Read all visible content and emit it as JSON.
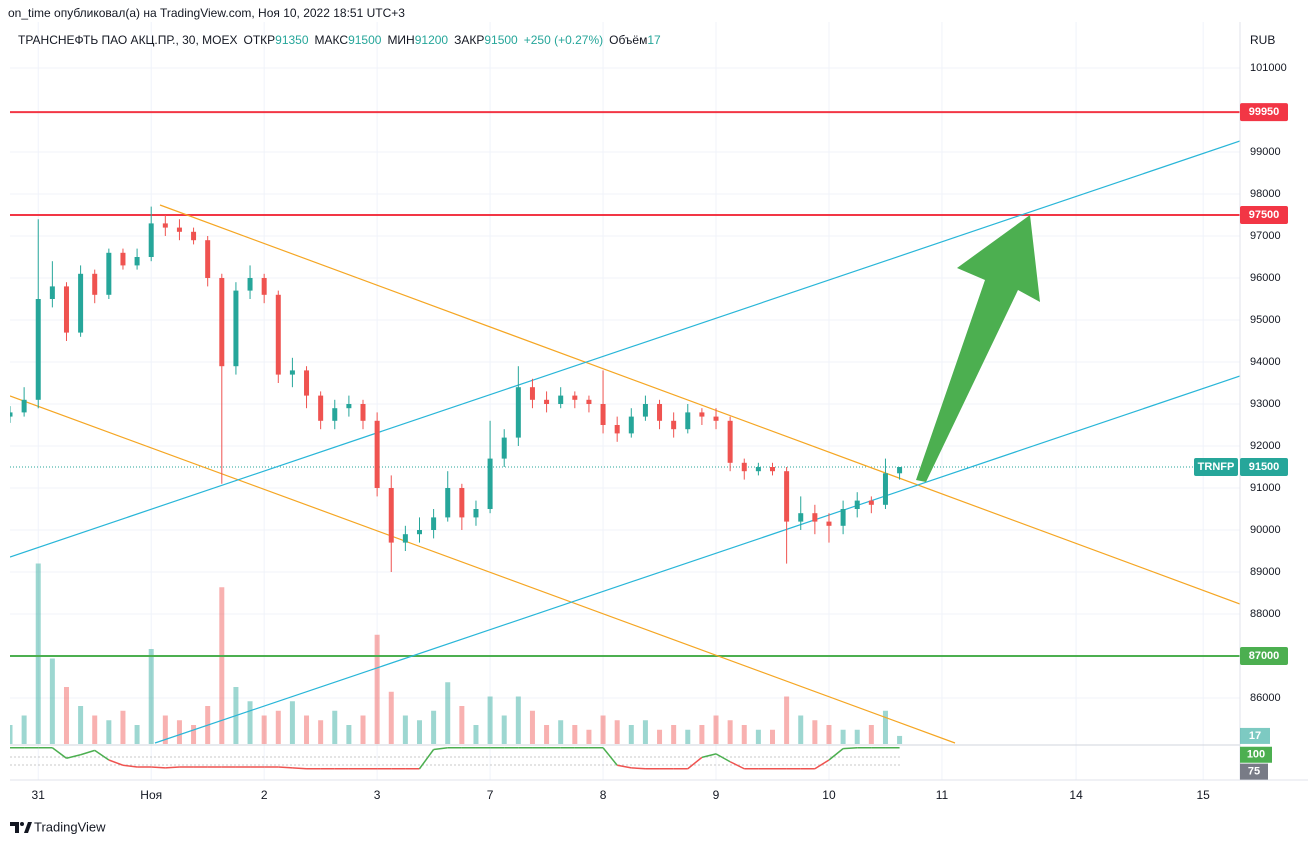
{
  "header": {
    "publisher": "on_time опубликовал(а) на TradingView.com, Ноя 10, 2022 18:51 UTC+3"
  },
  "chart_data": {
    "type": "candlestick",
    "title": "ТРАНСНЕФТЬ ПАО АКЦ.ПР., 30, MOEX",
    "legend_labels": {
      "open": "ОТКР",
      "high": "МАКС",
      "low": "МИН",
      "close": "ЗАКР",
      "volume": "Объём"
    },
    "change": "+250 (+0.27%)",
    "currency": "RUB",
    "symbol": "TRNFP",
    "up_color": "#26a69a",
    "down_color": "#ef5350",
    "x": [
      0,
      2,
      4,
      6,
      8,
      10,
      12,
      14,
      16,
      18,
      20,
      22,
      24,
      26,
      28,
      30,
      32,
      34,
      36,
      38,
      40,
      42,
      44,
      46,
      48,
      50,
      52,
      54,
      56,
      58,
      60,
      62,
      64,
      66,
      68,
      70,
      72,
      74,
      76,
      78,
      80,
      82,
      84,
      86,
      88,
      90,
      92,
      94,
      96,
      98,
      100,
      102,
      104,
      106,
      108,
      110,
      112,
      114,
      116,
      118,
      120,
      122,
      124,
      126
    ],
    "open": [
      92700,
      92800,
      93100,
      95500,
      95800,
      94700,
      96100,
      95600,
      96600,
      96300,
      96500,
      97300,
      97200,
      97100,
      96900,
      96000,
      93900,
      95700,
      96000,
      95600,
      93700,
      93800,
      93200,
      92600,
      92900,
      93000,
      92600,
      91000,
      89700,
      89900,
      90000,
      90300,
      91000,
      90300,
      90500,
      91700,
      92200,
      93400,
      93100,
      93000,
      93200,
      93100,
      93000,
      92500,
      92300,
      92700,
      93000,
      92600,
      92400,
      92800,
      92700,
      92600,
      91600,
      91400,
      91500,
      91400,
      90200,
      90400,
      90200,
      90100,
      90500,
      90700,
      90600,
      91350
    ],
    "high": [
      92950,
      93400,
      97400,
      96400,
      95900,
      96300,
      96200,
      96700,
      96700,
      96700,
      97700,
      97500,
      97400,
      97200,
      97000,
      96100,
      95900,
      96300,
      96100,
      95700,
      94100,
      93900,
      93300,
      93100,
      93200,
      93100,
      92800,
      91300,
      90100,
      90300,
      90500,
      91400,
      91100,
      90700,
      92600,
      92400,
      93900,
      93600,
      93300,
      93400,
      93300,
      93200,
      93800,
      92700,
      92900,
      93200,
      93100,
      92800,
      93000,
      92900,
      92900,
      92700,
      91700,
      91600,
      91600,
      91500,
      90800,
      90600,
      90400,
      90700,
      90900,
      90800,
      91700,
      91500
    ],
    "low": [
      92550,
      92700,
      92900,
      95300,
      94500,
      94600,
      95400,
      95500,
      96200,
      96200,
      96400,
      97000,
      96900,
      96800,
      95800,
      91100,
      93700,
      95500,
      95400,
      93500,
      93400,
      92900,
      92400,
      92400,
      92700,
      92400,
      90800,
      89000,
      89500,
      89700,
      89800,
      90200,
      90000,
      90100,
      90400,
      91500,
      92000,
      92900,
      92800,
      92900,
      92900,
      92800,
      92300,
      92100,
      92200,
      92600,
      92400,
      92200,
      92300,
      92500,
      92400,
      91400,
      91200,
      91300,
      91300,
      89200,
      90000,
      89900,
      89700,
      89900,
      90300,
      90400,
      90500,
      91200
    ],
    "close": [
      92800,
      93100,
      95500,
      95800,
      94700,
      96100,
      95600,
      96600,
      96300,
      96500,
      97300,
      97200,
      97100,
      96900,
      96000,
      93900,
      95700,
      96000,
      95600,
      93700,
      93800,
      93200,
      92600,
      92900,
      93000,
      92600,
      91000,
      89700,
      89900,
      90000,
      90300,
      91000,
      90300,
      90500,
      91700,
      92200,
      93400,
      93100,
      93000,
      93200,
      93100,
      93000,
      92500,
      92300,
      92700,
      93000,
      92600,
      92400,
      92800,
      92700,
      92600,
      91600,
      91400,
      91500,
      91400,
      90200,
      90400,
      90200,
      90100,
      90500,
      90700,
      90600,
      91350,
      91500
    ],
    "volume": [
      40,
      60,
      380,
      180,
      120,
      80,
      60,
      50,
      70,
      40,
      200,
      60,
      50,
      40,
      80,
      330,
      120,
      90,
      60,
      70,
      90,
      60,
      50,
      70,
      40,
      60,
      230,
      110,
      60,
      50,
      70,
      130,
      80,
      40,
      100,
      60,
      100,
      70,
      40,
      50,
      40,
      30,
      60,
      50,
      40,
      50,
      30,
      40,
      30,
      40,
      60,
      50,
      40,
      30,
      30,
      100,
      60,
      50,
      40,
      30,
      30,
      40,
      70,
      17
    ],
    "xlim": [
      0,
      174.5
    ],
    "xticks": [
      {
        "value": 4,
        "label": "31"
      },
      {
        "value": 20,
        "label": "Ноя"
      },
      {
        "value": 36,
        "label": "2"
      },
      {
        "value": 52,
        "label": "3"
      },
      {
        "value": 68,
        "label": "7"
      },
      {
        "value": 84,
        "label": "8"
      },
      {
        "value": 100,
        "label": "9"
      },
      {
        "value": 116,
        "label": "10"
      },
      {
        "value": 132,
        "label": "11"
      },
      {
        "value": 151,
        "label": "14"
      },
      {
        "value": 169,
        "label": "15"
      }
    ],
    "ylim": [
      85000,
      102000
    ],
    "yticks": [
      86000,
      88000,
      89000,
      90000,
      91000,
      92000,
      93000,
      94000,
      95000,
      96000,
      97000,
      98000,
      99000,
      101000
    ],
    "vlim": [
      0,
      400
    ],
    "grid": true,
    "levels": [
      {
        "value": 99950,
        "color": "#f23645"
      },
      {
        "value": 97500,
        "color": "#f23645"
      },
      {
        "value": 87000,
        "color": "#4caf50"
      }
    ],
    "indicator": {
      "values": [
        100,
        100,
        100,
        100,
        88,
        92,
        97,
        86,
        80,
        78,
        78,
        77,
        78,
        78,
        78,
        78,
        78,
        78,
        78,
        78,
        77,
        76,
        76,
        76,
        76,
        76,
        76,
        76,
        76,
        76,
        98,
        100,
        100,
        100,
        100,
        100,
        100,
        100,
        100,
        100,
        100,
        100,
        100,
        80,
        77,
        76,
        76,
        76,
        76,
        89,
        93,
        84,
        76,
        76,
        76,
        76,
        76,
        76,
        86,
        99,
        100,
        100,
        100,
        100
      ],
      "ylim": [
        70,
        102
      ],
      "ref": 75,
      "up_color": "#4caf50",
      "down_color": "#ef5350"
    }
  },
  "footer": {
    "brand": "TradingView"
  }
}
